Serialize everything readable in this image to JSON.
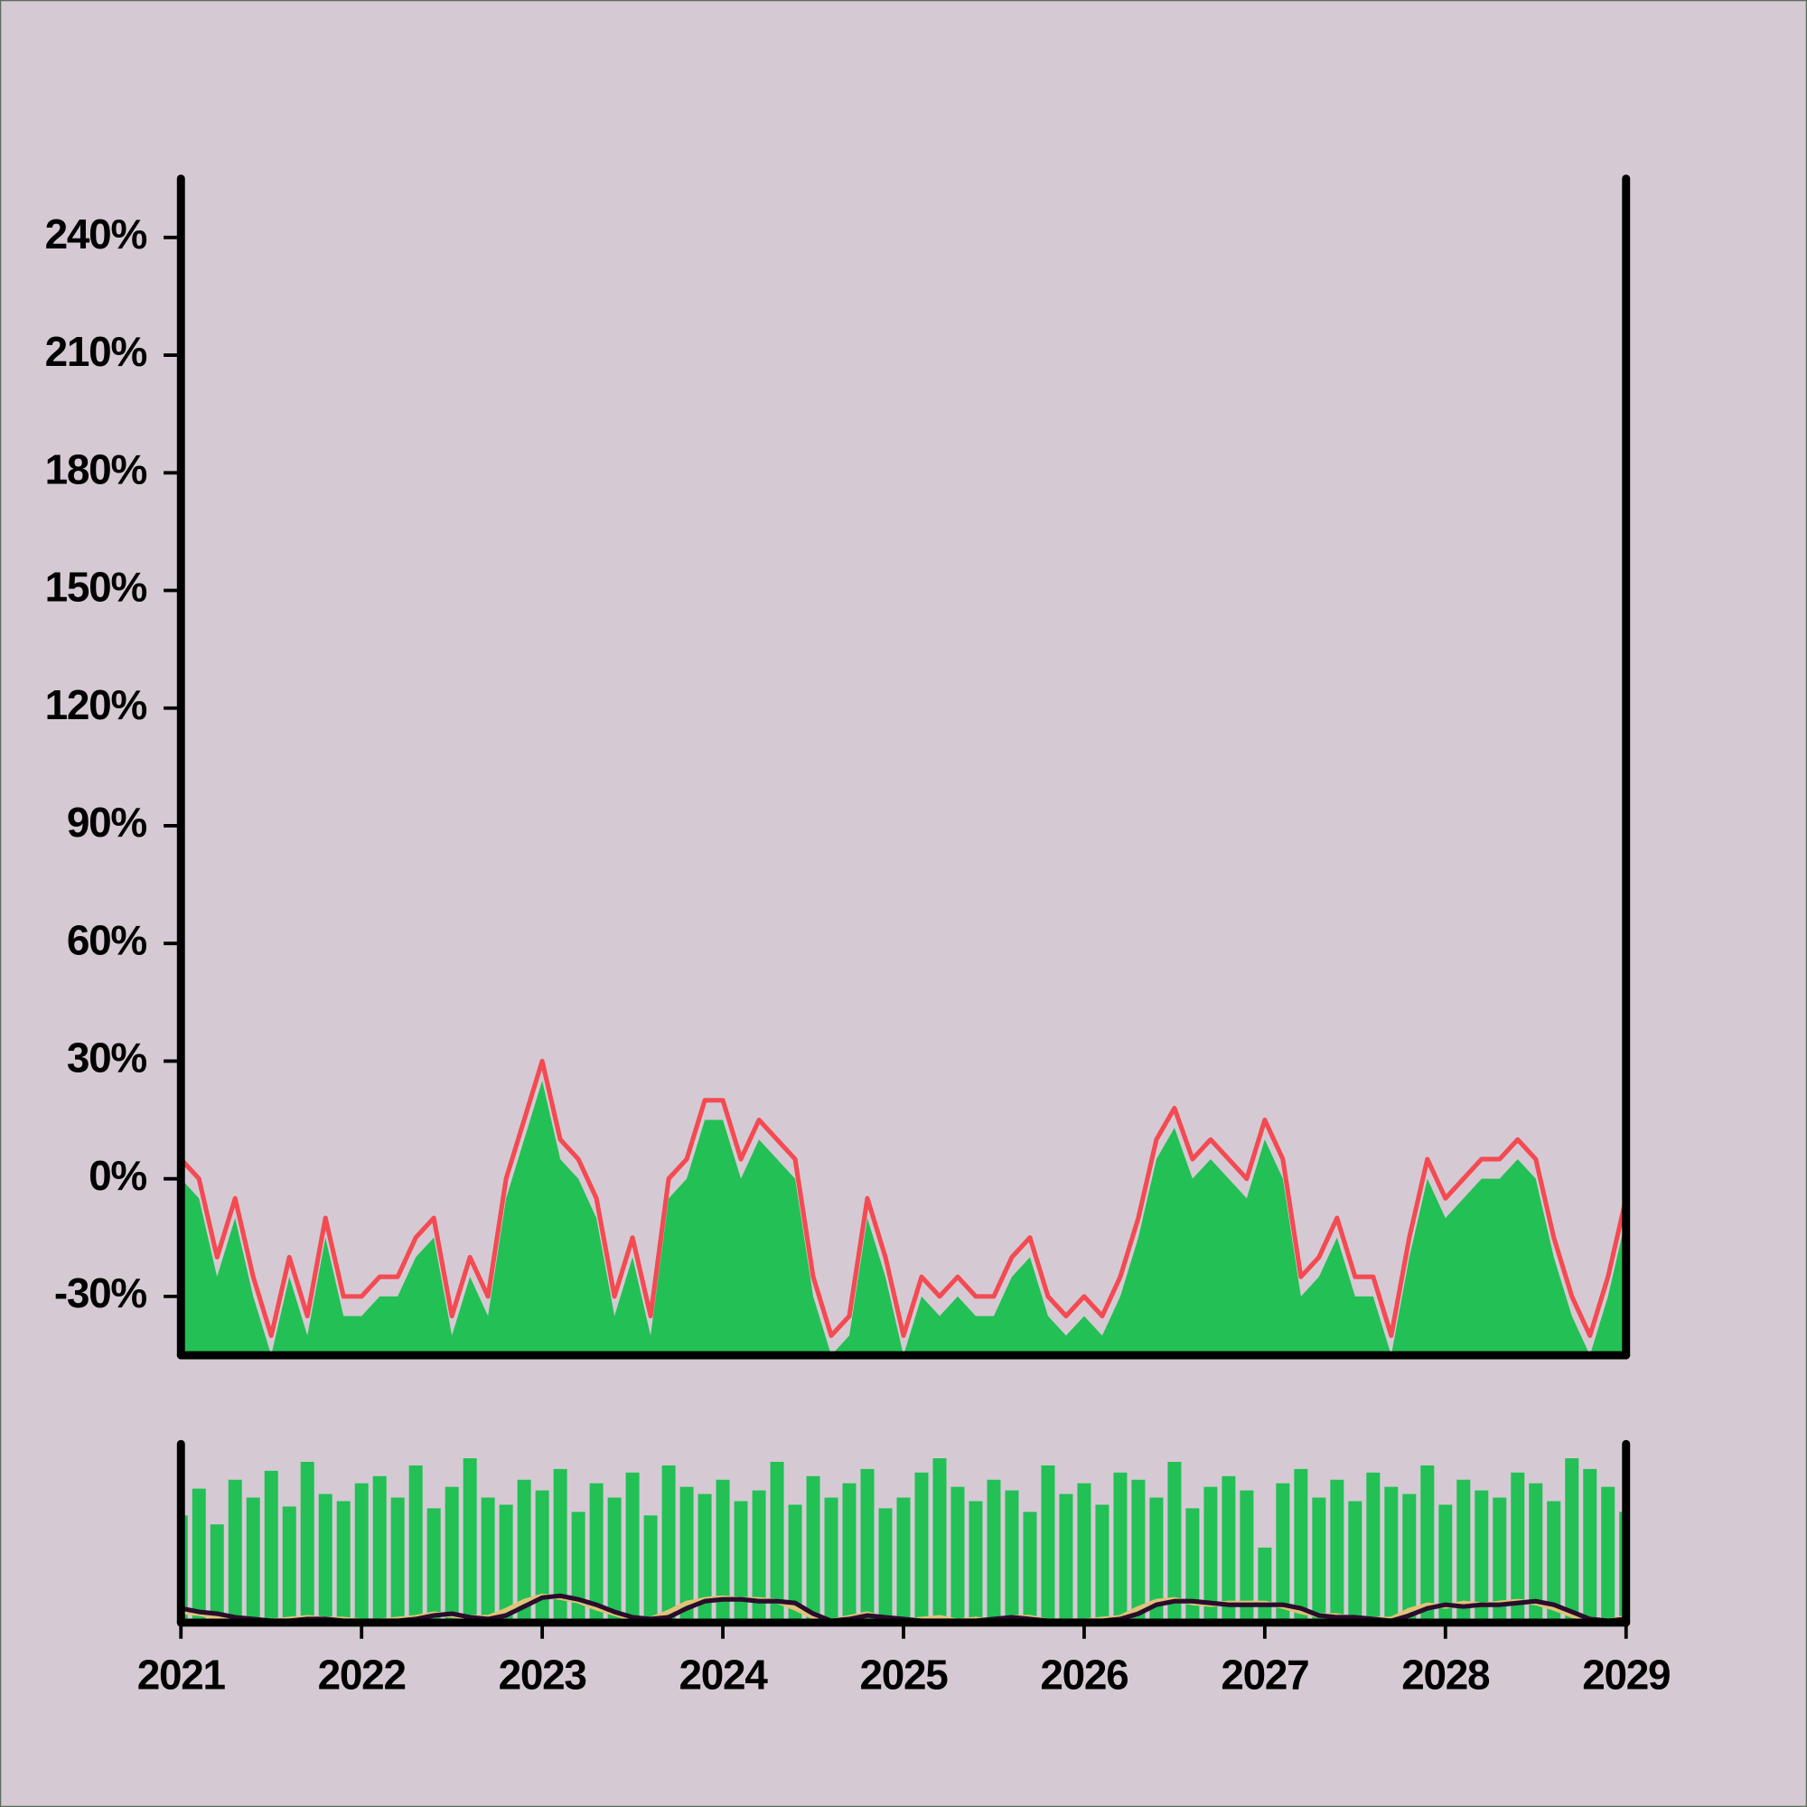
{
  "chart_data": [
    {
      "type": "area",
      "x": [
        2021.0,
        2021.1,
        2021.2,
        2021.3,
        2021.4,
        2021.5,
        2021.6,
        2021.7,
        2021.8,
        2021.9,
        2022.0,
        2022.1,
        2022.2,
        2022.3,
        2022.4,
        2022.5,
        2022.6,
        2022.7,
        2022.8,
        2022.9,
        2023.0,
        2023.1,
        2023.2,
        2023.3,
        2023.4,
        2023.5,
        2023.6,
        2023.7,
        2023.8,
        2023.9,
        2024.0,
        2024.1,
        2024.2,
        2024.3,
        2024.4,
        2024.5,
        2024.6,
        2024.7,
        2024.8,
        2024.9,
        2025.0,
        2025.1,
        2025.2,
        2025.3,
        2025.4,
        2025.5,
        2025.6,
        2025.7,
        2025.8,
        2025.9,
        2026.0,
        2026.1,
        2026.2,
        2026.3,
        2026.4,
        2026.5,
        2026.6,
        2026.7,
        2026.8,
        2026.9,
        2027.0,
        2027.1,
        2027.2,
        2027.3,
        2027.4,
        2027.5,
        2027.6,
        2027.7,
        2027.8,
        2027.9,
        2028.0,
        2028.1,
        2028.2,
        2028.3,
        2028.4,
        2028.5,
        2028.6,
        2028.7,
        2028.8,
        2028.9,
        2029.0
      ],
      "series": [
        {
          "kind": "area",
          "color": "#22c055",
          "values": [
            0,
            -5,
            -25,
            -10,
            -30,
            -45,
            -25,
            -40,
            -15,
            -35,
            -35,
            -30,
            -30,
            -20,
            -15,
            -40,
            -25,
            -35,
            -5,
            10,
            25,
            5,
            0,
            -10,
            -35,
            -20,
            -40,
            -5,
            0,
            15,
            15,
            0,
            10,
            5,
            0,
            -30,
            -45,
            -40,
            -10,
            -25,
            -45,
            -30,
            -35,
            -30,
            -35,
            -35,
            -25,
            -20,
            -35,
            -40,
            -35,
            -40,
            -30,
            -15,
            5,
            13,
            0,
            5,
            0,
            -5,
            10,
            0,
            -30,
            -25,
            -15,
            -30,
            -30,
            -45,
            -20,
            0,
            -10,
            -5,
            0,
            0,
            5,
            0,
            -20,
            -35,
            -45,
            -30,
            -10
          ]
        },
        {
          "kind": "line",
          "color": "#f44a52",
          "values": [
            5,
            0,
            -20,
            -5,
            -25,
            -40,
            -20,
            -35,
            -10,
            -30,
            -30,
            -25,
            -25,
            -15,
            -10,
            -35,
            -20,
            -30,
            0,
            15,
            30,
            10,
            5,
            -5,
            -30,
            -15,
            -35,
            0,
            5,
            20,
            20,
            5,
            15,
            10,
            5,
            -25,
            -40,
            -35,
            -5,
            -20,
            -40,
            -25,
            -30,
            -25,
            -30,
            -30,
            -20,
            -15,
            -30,
            -35,
            -30,
            -35,
            -25,
            -10,
            10,
            18,
            5,
            10,
            5,
            0,
            15,
            5,
            -25,
            -20,
            -10,
            -25,
            -25,
            -40,
            -15,
            5,
            -5,
            0,
            5,
            5,
            10,
            5,
            -15,
            -30,
            -40,
            -25,
            -5
          ]
        }
      ],
      "xlim": [
        2021,
        2029
      ],
      "ylim": [
        -45,
        255
      ],
      "yticks": [
        {
          "value": -30,
          "label": "-30%"
        },
        {
          "value": 0,
          "label": "0%"
        },
        {
          "value": 30,
          "label": "30%"
        },
        {
          "value": 60,
          "label": "60%"
        },
        {
          "value": 90,
          "label": "90%"
        },
        {
          "value": 120,
          "label": "120%"
        },
        {
          "value": 150,
          "label": "150%"
        },
        {
          "value": 180,
          "label": "180%"
        },
        {
          "value": 210,
          "label": "210%"
        },
        {
          "value": 240,
          "label": "240%"
        }
      ]
    },
    {
      "type": "bar",
      "x": [
        2021.0,
        2021.1,
        2021.2,
        2021.3,
        2021.4,
        2021.5,
        2021.6,
        2021.7,
        2021.8,
        2021.9,
        2022.0,
        2022.1,
        2022.2,
        2022.3,
        2022.4,
        2022.5,
        2022.6,
        2022.7,
        2022.8,
        2022.9,
        2023.0,
        2023.1,
        2023.2,
        2023.3,
        2023.4,
        2023.5,
        2023.6,
        2023.7,
        2023.8,
        2023.9,
        2024.0,
        2024.1,
        2024.2,
        2024.3,
        2024.4,
        2024.5,
        2024.6,
        2024.7,
        2024.8,
        2024.9,
        2025.0,
        2025.1,
        2025.2,
        2025.3,
        2025.4,
        2025.5,
        2025.6,
        2025.7,
        2025.8,
        2025.9,
        2026.0,
        2026.1,
        2026.2,
        2026.3,
        2026.4,
        2026.5,
        2026.6,
        2026.7,
        2026.8,
        2026.9,
        2027.0,
        2027.1,
        2027.2,
        2027.3,
        2027.4,
        2027.5,
        2027.6,
        2027.7,
        2027.8,
        2027.9,
        2028.0,
        2028.1,
        2028.2,
        2028.3,
        2028.4,
        2028.5,
        2028.6,
        2028.7,
        2028.8,
        2028.9,
        2029.0
      ],
      "series": [
        {
          "kind": "bar",
          "color": "#22c055",
          "values": [
            60,
            75,
            55,
            80,
            70,
            85,
            65,
            90,
            72,
            68,
            78,
            82,
            70,
            88,
            64,
            76,
            92,
            70,
            66,
            80,
            74,
            86,
            62,
            78,
            70,
            84,
            60,
            88,
            76,
            72,
            80,
            68,
            74,
            90,
            66,
            82,
            70,
            78,
            86,
            64,
            70,
            84,
            92,
            76,
            68,
            80,
            74,
            62,
            88,
            72,
            78,
            66,
            84,
            80,
            70,
            90,
            64,
            76,
            82,
            74,
            42,
            78,
            86,
            70,
            80,
            68,
            84,
            76,
            72,
            88,
            66,
            80,
            74,
            70,
            84,
            78,
            68,
            92,
            86,
            76,
            62
          ]
        },
        {
          "kind": "line",
          "color": "#e2c27a",
          "values": [
            6,
            5,
            3,
            2,
            1,
            1,
            2,
            3,
            2,
            2,
            1,
            1,
            2,
            3,
            5,
            4,
            3,
            3,
            7,
            12,
            15,
            14,
            12,
            8,
            5,
            2,
            2,
            6,
            11,
            13,
            14,
            13,
            13,
            12,
            8,
            3,
            1,
            3,
            5,
            2,
            1,
            2,
            3,
            1,
            2,
            1,
            3,
            3,
            1,
            1,
            1,
            2,
            3,
            8,
            12,
            13,
            11,
            10,
            11,
            11,
            11,
            9,
            6,
            4,
            4,
            2,
            2,
            2,
            7,
            10,
            9,
            11,
            10,
            11,
            12,
            11,
            8,
            4,
            2,
            1,
            3
          ]
        },
        {
          "kind": "line",
          "color": "#2a0c2c",
          "values": [
            8,
            6,
            5,
            3,
            2,
            1,
            1,
            2,
            2,
            1,
            1,
            1,
            1,
            2,
            4,
            5,
            3,
            2,
            4,
            9,
            14,
            15,
            13,
            10,
            6,
            3,
            2,
            3,
            8,
            12,
            13,
            13,
            12,
            12,
            11,
            5,
            1,
            2,
            4,
            3,
            2,
            1,
            1,
            1,
            1,
            2,
            3,
            2,
            1,
            1,
            1,
            1,
            2,
            5,
            10,
            12,
            12,
            11,
            10,
            10,
            10,
            10,
            8,
            4,
            3,
            3,
            2,
            1,
            4,
            8,
            10,
            9,
            10,
            10,
            11,
            12,
            10,
            6,
            2,
            1,
            2
          ]
        }
      ],
      "xlim": [
        2021,
        2029
      ],
      "ylim": [
        0,
        100
      ],
      "xticks": [
        2021,
        2022,
        2023,
        2024,
        2025,
        2026,
        2027,
        2028,
        2029
      ]
    }
  ]
}
